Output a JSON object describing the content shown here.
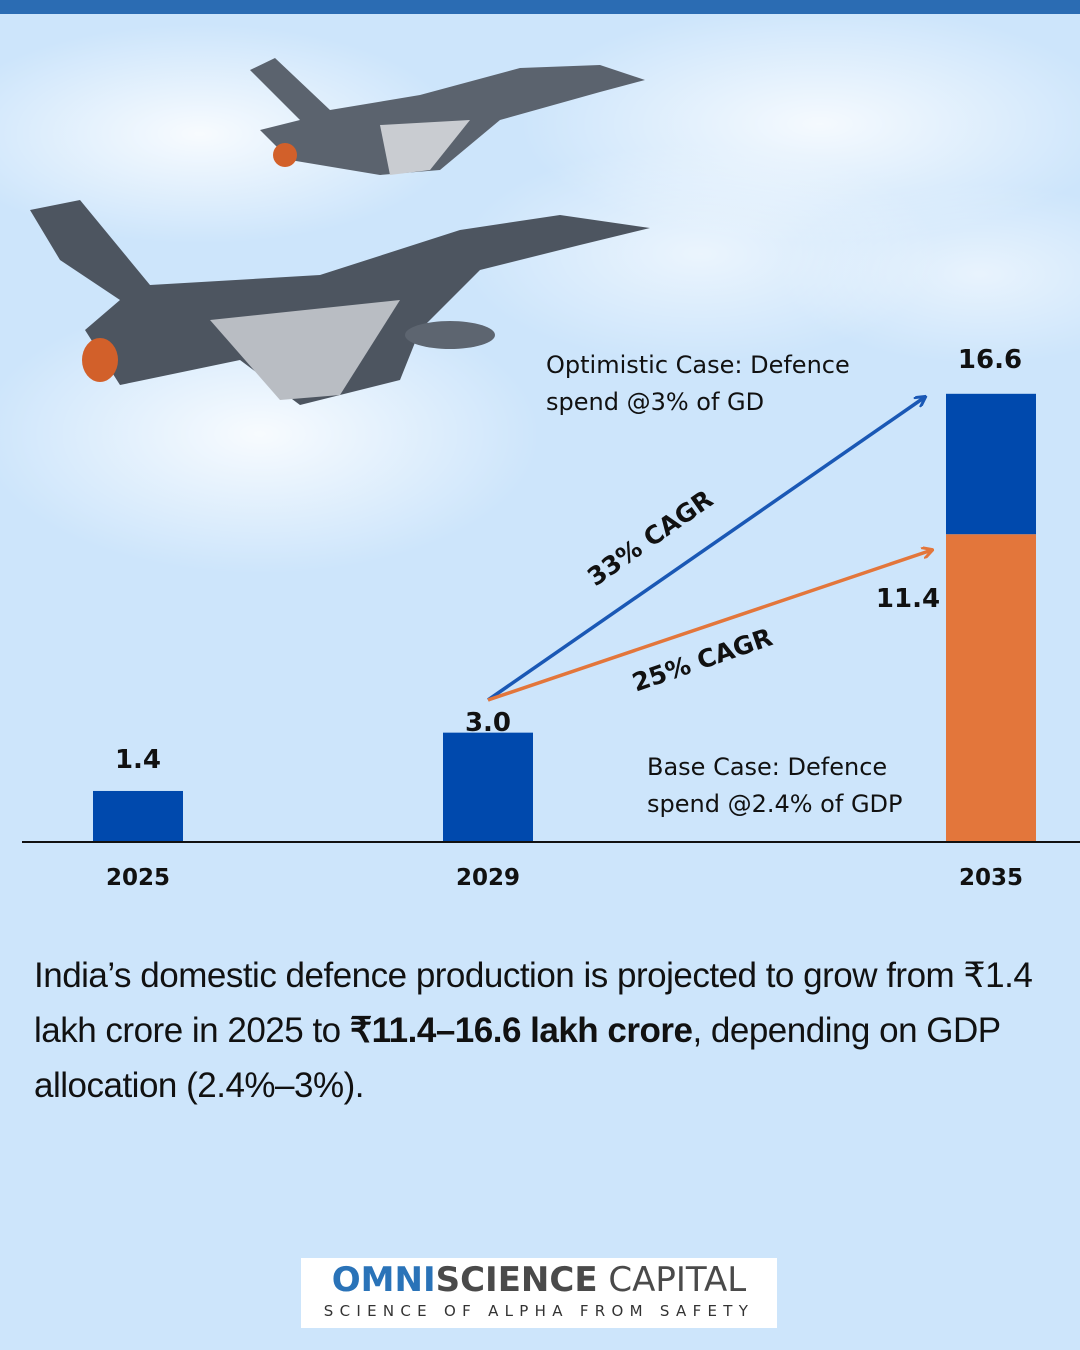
{
  "chart_data": {
    "type": "bar",
    "categories": [
      "2025",
      "2029",
      "2035"
    ],
    "series": [
      {
        "name": "Base Case",
        "values": [
          1.4,
          3.0,
          11.4
        ],
        "color": "#e3763b"
      },
      {
        "name": "Optimistic Case",
        "values": [
          1.4,
          3.0,
          16.6
        ],
        "color": "#0049ad"
      }
    ],
    "data_labels": [
      "1.4",
      "3.0",
      "11.4",
      "16.6"
    ],
    "annotations": {
      "optimistic": [
        "Optimistic Case: Defence",
        "spend @3% of GD"
      ],
      "base": [
        "Base Case: Defence",
        "spend @2.4% of GDP"
      ],
      "cagr_optimistic": "33% CAGR",
      "cagr_base": "25% CAGR"
    },
    "ylim": [
      0,
      17
    ],
    "grid": false
  },
  "caption": {
    "part1": "India’s domestic defence production is projected to grow from ₹1.4 lakh crore in 2025 to ",
    "bold": "₹11.4–16.6 lakh crore",
    "part2": ", depending on GDP allocation (2.4%–3%)."
  },
  "logo": {
    "omni": "OMNI",
    "science": "SCIENCE",
    "capital": " CAPITAL",
    "tagline": "SCIENCE OF ALPHA FROM SAFETY"
  }
}
